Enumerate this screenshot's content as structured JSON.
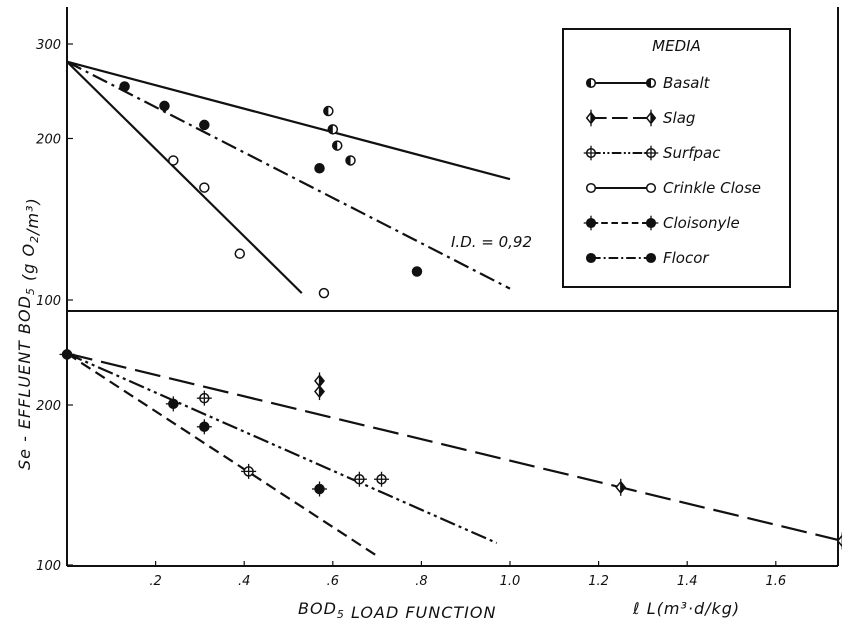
{
  "chart_data": [
    {
      "type": "scatter",
      "panel": "upper",
      "y_scale": "log",
      "xlim": [
        0.0,
        1.8
      ],
      "ylim": [
        100,
        330
      ],
      "ytick_values": [
        100,
        200,
        300
      ],
      "ytick_labels": [
        "100",
        "200",
        "300"
      ],
      "legend": {
        "title": "MEDIA",
        "placement": "top-right",
        "entries": [
          {
            "name": "Basalt",
            "line": "solid",
            "marker": "half-left"
          },
          {
            "name": "Slag",
            "line": "long-dash",
            "marker": "diamond-cross"
          },
          {
            "name": "Surfpac",
            "line": "dash-dot-dot",
            "marker": "open-cross"
          },
          {
            "name": "Crinkle Close",
            "line": "solid",
            "marker": "open"
          },
          {
            "name": "Cloisonyle",
            "line": "dashed",
            "marker": "filled-cross"
          },
          {
            "name": "Flocor",
            "line": "dash-dot",
            "marker": "filled"
          }
        ]
      },
      "annotation": "I.D. = 0,92",
      "series": [
        {
          "name": "Crinkle Close",
          "marker": "open",
          "points": [
            [
              0.24,
              182
            ],
            [
              0.31,
              162
            ],
            [
              0.39,
              122
            ],
            [
              0.58,
              103
            ]
          ],
          "fit": {
            "x": [
              0.0,
              0.53
            ],
            "y": [
              278,
              103
            ],
            "line": "solid"
          }
        },
        {
          "name": "Flocor",
          "marker": "filled",
          "points": [
            [
              0.13,
              250
            ],
            [
              0.22,
              230
            ],
            [
              0.31,
              212
            ],
            [
              0.57,
              176
            ],
            [
              0.79,
              113
            ]
          ],
          "fit": {
            "x": [
              0.0,
              1.0
            ],
            "y": [
              278,
              105
            ],
            "line": "dash-dot"
          }
        },
        {
          "name": "Basalt",
          "marker": "half-left",
          "points": [
            [
              0.59,
              225
            ],
            [
              0.6,
              208
            ],
            [
              0.61,
              194
            ],
            [
              0.64,
              182
            ]
          ],
          "fit": {
            "x": [
              0.0,
              1.0
            ],
            "y": [
              278,
              168
            ],
            "line": "solid"
          }
        }
      ]
    },
    {
      "type": "scatter",
      "panel": "lower",
      "y_scale": "log",
      "xlim": [
        0.0,
        1.8
      ],
      "ylim": [
        100,
        290
      ],
      "xticks": [
        0.2,
        0.4,
        0.6,
        0.8,
        1.0,
        1.2,
        1.4,
        1.6
      ],
      "xtick_labels": [
        ".2",
        ".4",
        ".6",
        ".8",
        "1.0",
        "1.2",
        "1.4",
        "1.6"
      ],
      "ytick_values": [
        100,
        200
      ],
      "ytick_labels": [
        "100",
        "200"
      ],
      "xlabel_left": "BOD5 LOAD FUNCTION",
      "xlabel_right": "ℓ L(m³·d/kg)",
      "ylabel": "Se - EFFLUENT BOD5   (g O2/m³)",
      "series": [
        {
          "name": "Slag",
          "marker": "diamond-cross",
          "points": [
            [
              0.57,
              222
            ],
            [
              0.57,
              212
            ],
            [
              1.25,
              140
            ],
            [
              1.75,
              111
            ]
          ],
          "fit": {
            "x": [
              0.0,
              1.75
            ],
            "y": [
              250,
              111
            ],
            "line": "long-dash"
          }
        },
        {
          "name": "Surfpac",
          "marker": "open-cross",
          "points": [
            [
              0.31,
              206
            ],
            [
              0.41,
              150
            ],
            [
              0.66,
              145
            ],
            [
              0.71,
              145
            ]
          ],
          "fit": {
            "x": [
              0.0,
              0.97
            ],
            "y": [
              250,
              110
            ],
            "line": "dash-dot-dot"
          }
        },
        {
          "name": "Cloisonyle",
          "marker": "filled-cross",
          "points": [
            [
              0.0,
              249
            ],
            [
              0.24,
              201
            ],
            [
              0.31,
              182
            ],
            [
              0.57,
              139
            ]
          ],
          "fit": {
            "x": [
              0.0,
              0.7
            ],
            "y": [
              250,
              104
            ],
            "line": "dashed"
          }
        }
      ]
    }
  ]
}
